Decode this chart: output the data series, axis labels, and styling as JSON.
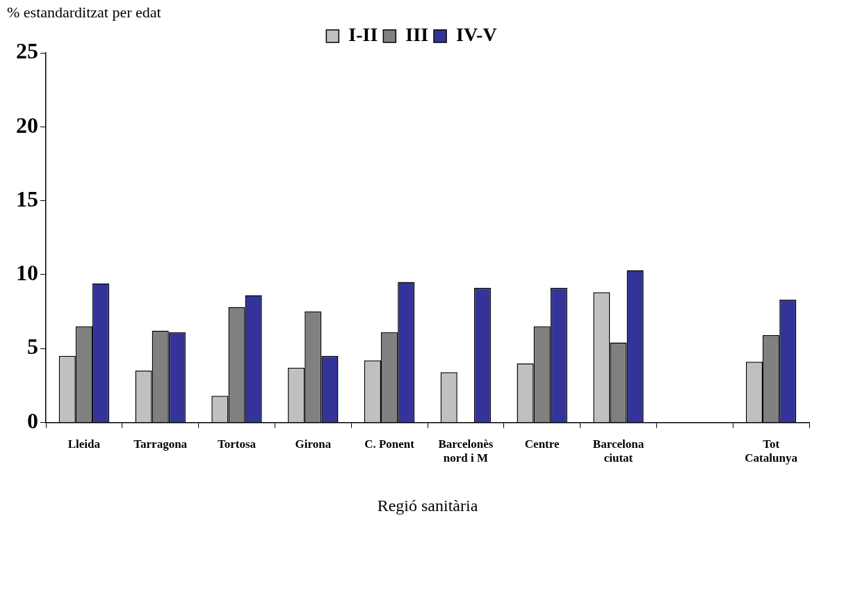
{
  "chart_data": {
    "type": "bar",
    "ylabel": "% estandarditzat per edat",
    "xlabel": "Regió sanitària",
    "categories": [
      "Lleida",
      "Tarragona",
      "Tortosa",
      "Girona",
      "C. Ponent",
      "Barcelonès nord i M",
      "Centre",
      "Barcelona ciutat",
      null,
      "Tot Catalunya"
    ],
    "series": [
      {
        "name": "I-II",
        "color": "#c0c0c0",
        "values": [
          4.5,
          3.5,
          1.8,
          3.7,
          4.2,
          3.4,
          4.0,
          8.8,
          null,
          4.1
        ]
      },
      {
        "name": "III",
        "color": "#808080",
        "values": [
          6.5,
          6.2,
          7.8,
          7.5,
          6.1,
          null,
          6.5,
          5.4,
          null,
          5.9
        ]
      },
      {
        "name": "IV-V",
        "color": "#333399",
        "values": [
          9.4,
          6.1,
          8.6,
          4.5,
          9.5,
          9.1,
          9.1,
          10.3,
          null,
          8.3
        ]
      }
    ],
    "ylim": [
      0,
      25
    ],
    "yticks": [
      0,
      5,
      10,
      15,
      20,
      25
    ],
    "grid": false,
    "legend": "top"
  }
}
